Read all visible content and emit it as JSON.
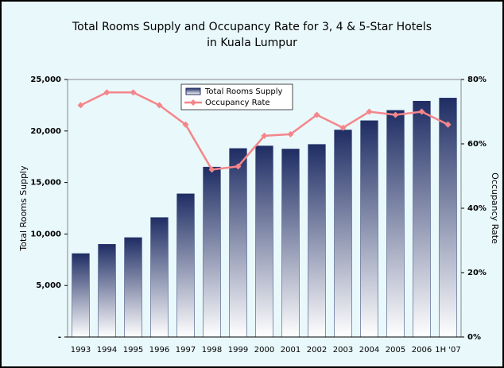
{
  "chart_data": {
    "type": "bar_line",
    "title": [
      "Total Rooms Supply and Occupancy Rate for 3, 4 & 5-Star Hotels",
      "in Kuala Lumpur"
    ],
    "y_label": "Total Rooms Supply",
    "y2_label": "Occupancy Rate",
    "categories": [
      "1993",
      "1994",
      "1995",
      "1996",
      "1997",
      "1998",
      "1999",
      "2000",
      "2001",
      "2002",
      "2003",
      "2004",
      "2005",
      "2006",
      "1H '07"
    ],
    "series": [
      {
        "name": "Total Rooms Supply",
        "type": "bar",
        "color": "#1f2d64",
        "values": [
          8100,
          9000,
          9650,
          11600,
          13900,
          16500,
          18300,
          18550,
          18250,
          18700,
          20100,
          21000,
          22000,
          22900,
          23200
        ]
      },
      {
        "name": "Occupancy Rate",
        "type": "line",
        "axis": "y2",
        "color": "#f4868a",
        "values": [
          72,
          76,
          76,
          72,
          66,
          52,
          53,
          62.5,
          63,
          69,
          65,
          70,
          69,
          70,
          66
        ]
      }
    ],
    "ylim": [
      0,
      25000
    ],
    "yticks": [
      {
        "value": 0,
        "label": "-"
      },
      {
        "value": 5000,
        "label": "5,000"
      },
      {
        "value": 10000,
        "label": "10,000"
      },
      {
        "value": 15000,
        "label": "15,000"
      },
      {
        "value": 20000,
        "label": "20,000"
      },
      {
        "value": 25000,
        "label": "25,000"
      }
    ],
    "y2lim": [
      0,
      80
    ],
    "y2ticks": [
      {
        "value": 0,
        "label": "0%"
      },
      {
        "value": 20,
        "label": "20%"
      },
      {
        "value": 40,
        "label": "40%"
      },
      {
        "value": 60,
        "label": "60%"
      },
      {
        "value": 80,
        "label": "80%"
      }
    ]
  }
}
